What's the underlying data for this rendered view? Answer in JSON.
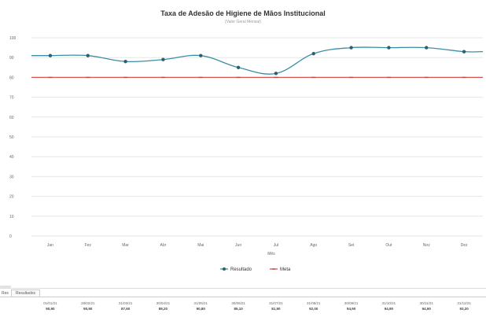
{
  "chart_data": {
    "type": "line",
    "title": "Taxa de Adesão de Higiene de Mãos Institucional",
    "subtitle": "(Valor Geral Mensal)",
    "xlabel": "Mês",
    "ylabel": "",
    "ylim": [
      0,
      100
    ],
    "yticks": [
      0,
      10,
      20,
      30,
      40,
      50,
      60,
      70,
      80,
      90,
      100
    ],
    "grid": true,
    "legend_position": "bottom",
    "categories": [
      "Jan",
      "Fev",
      "Mar",
      "Abr",
      "Mai",
      "Jun",
      "Jul",
      "Ago",
      "Set",
      "Out",
      "Nov",
      "Dez"
    ],
    "series": [
      {
        "name": "Resultado",
        "color": "#3a8fa6",
        "marker": "circle",
        "values": [
          91,
          91,
          88,
          89,
          91,
          85,
          82,
          92,
          95,
          95,
          95,
          93
        ]
      },
      {
        "name": "Meta",
        "color": "#d9534f",
        "marker": "dash",
        "values": [
          80,
          80,
          80,
          80,
          80,
          80,
          80,
          80,
          80,
          80,
          80,
          80
        ]
      }
    ]
  },
  "table": {
    "row_label": "Res",
    "tab_label": "Resultados",
    "cells": [
      {
        "top": "01/01/21",
        "bottom": "90,90"
      },
      {
        "top": "28/02/21",
        "bottom": "90,90"
      },
      {
        "top": "31/03/21",
        "bottom": "87,60"
      },
      {
        "top": "30/04/21",
        "bottom": "89,20"
      },
      {
        "top": "31/05/21",
        "bottom": "90,80"
      },
      {
        "top": "30/06/21",
        "bottom": "85,10"
      },
      {
        "top": "31/07/21",
        "bottom": "81,90"
      },
      {
        "top": "31/08/21",
        "bottom": "92,00"
      },
      {
        "top": "30/09/21",
        "bottom": "94,90"
      },
      {
        "top": "31/10/21",
        "bottom": "94,90"
      },
      {
        "top": "30/11/21",
        "bottom": "94,90"
      },
      {
        "top": "31/12/21",
        "bottom": "93,20"
      }
    ]
  }
}
